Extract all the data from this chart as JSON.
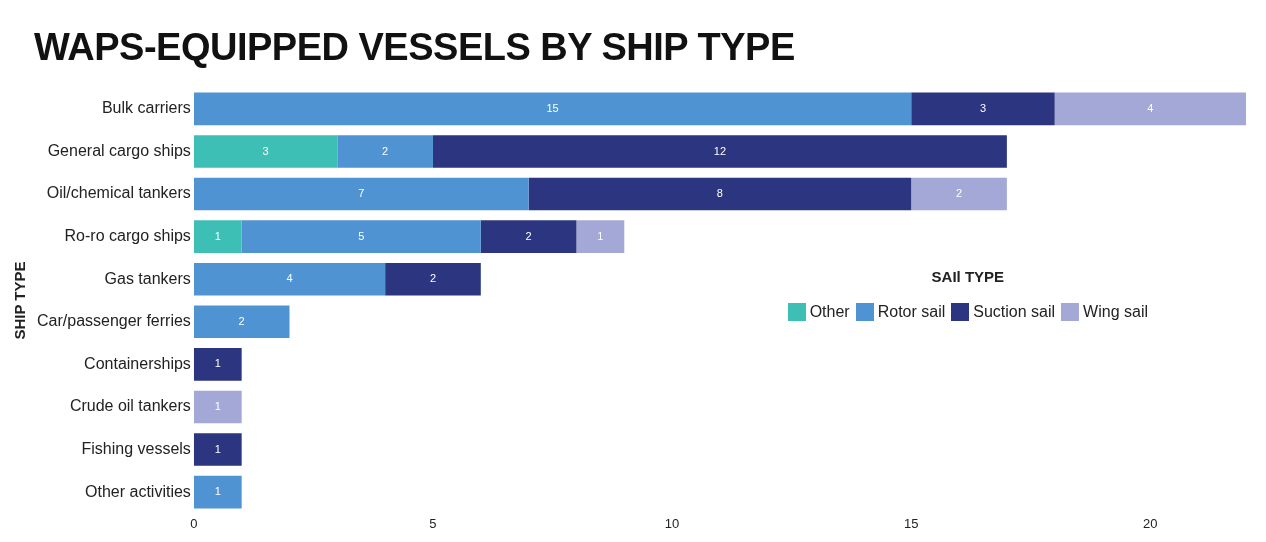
{
  "chart_data": {
    "type": "bar",
    "orientation": "horizontal",
    "stacked": true,
    "title": "WAPS-EQUIPPED VESSELS BY SHIP TYPE",
    "ylabel": "SHIP TYPE",
    "legend_title": "SAIl TYPE",
    "legend": "right",
    "data_labels": true,
    "grid": false,
    "categories": [
      "Bulk carriers",
      "General cargo ships",
      "Oil/chemical tankers",
      "Ro-ro cargo ships",
      "Gas tankers",
      "Car/passenger ferries",
      "Containerships",
      "Crude oil tankers",
      "Fishing vessels",
      "Other activities"
    ],
    "series": [
      {
        "name": "Other",
        "color": "#3dbfb5",
        "values": [
          null,
          3,
          null,
          1,
          null,
          null,
          null,
          null,
          null,
          null
        ]
      },
      {
        "name": "Rotor sail",
        "color": "#4f93d2",
        "values": [
          15,
          2,
          7,
          5,
          4,
          2,
          null,
          null,
          null,
          1
        ]
      },
      {
        "name": "Suction sail",
        "color": "#2b3580",
        "values": [
          3,
          12,
          8,
          2,
          2,
          null,
          1,
          null,
          1,
          null
        ]
      },
      {
        "name": "Wing sail",
        "color": "#a3a8d6",
        "values": [
          4,
          null,
          2,
          1,
          null,
          null,
          null,
          1,
          null,
          null
        ]
      }
    ],
    "xlim": [
      0,
      22
    ],
    "xticks": [
      0,
      5,
      10,
      15,
      20
    ]
  }
}
